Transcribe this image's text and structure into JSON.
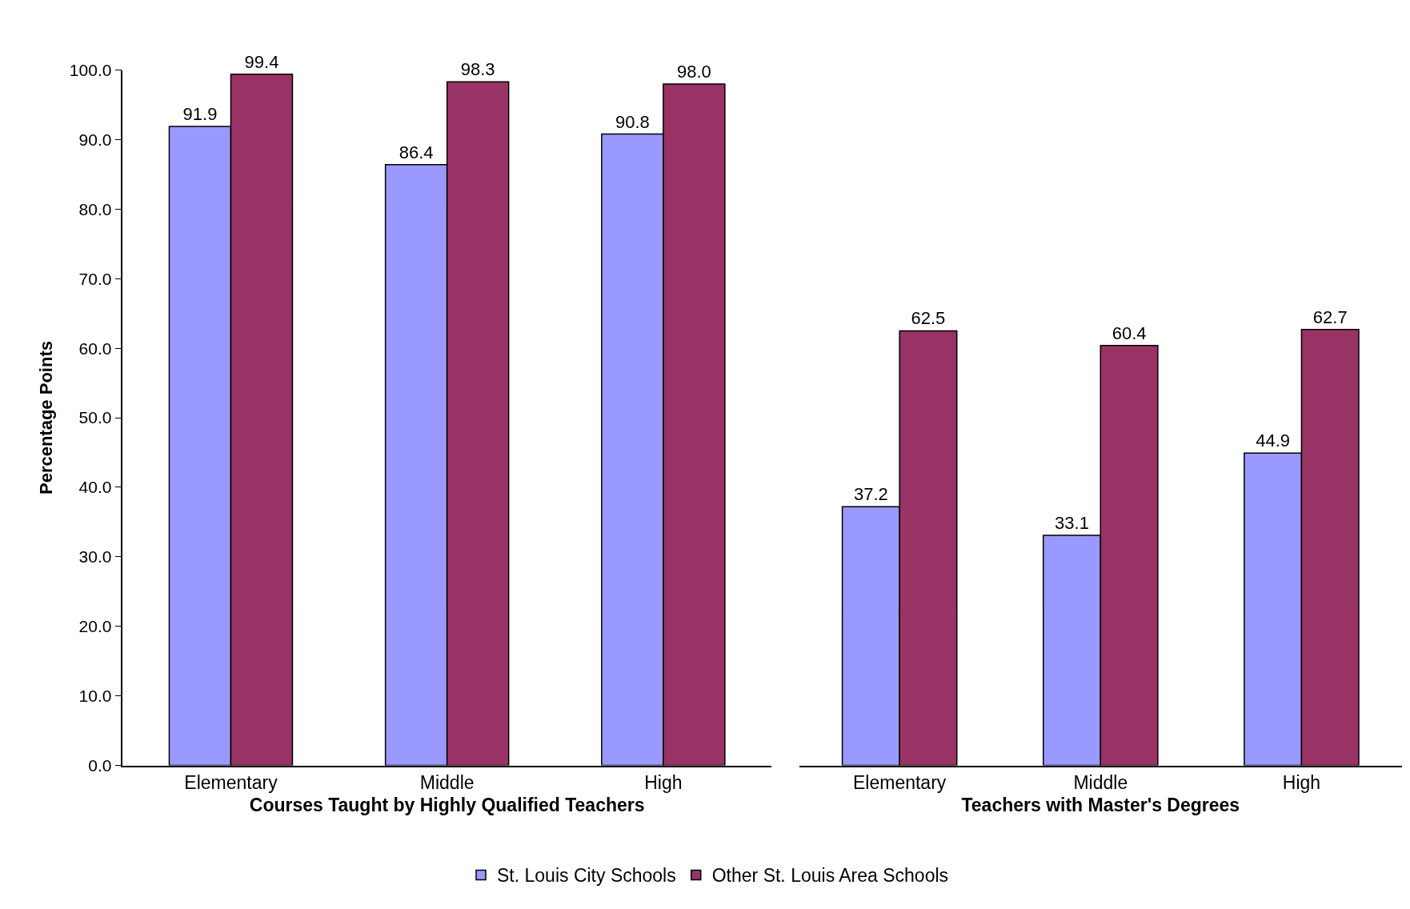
{
  "chart_data": [
    {
      "type": "bar",
      "xlabel": "Courses Taught by Highly Qualified Teachers",
      "ylabel": "Percentage Points",
      "categories": [
        "Elementary",
        "Middle",
        "High"
      ],
      "series": [
        {
          "name": "St. Louis City Schools",
          "color": "#9999ff",
          "values": [
            91.9,
            86.4,
            90.8
          ],
          "value_labels": [
            "91.9",
            "86.4",
            "90.8"
          ]
        },
        {
          "name": "Other St. Louis Area Schools",
          "color": "#993366",
          "values": [
            99.4,
            98.3,
            98.0
          ],
          "value_labels": [
            "99.4",
            "98.3",
            "98.0"
          ]
        }
      ],
      "ylim": [
        0,
        100
      ],
      "yticks": [
        {
          "value": 0,
          "label": "0.0"
        },
        {
          "value": 10,
          "label": "10.0"
        },
        {
          "value": 20,
          "label": "20.0"
        },
        {
          "value": 30,
          "label": "30.0"
        },
        {
          "value": 40,
          "label": "40.0"
        },
        {
          "value": 50,
          "label": "50.0"
        },
        {
          "value": 60,
          "label": "60.0"
        },
        {
          "value": 70,
          "label": "70.0"
        },
        {
          "value": 80,
          "label": "80.0"
        },
        {
          "value": 90,
          "label": "90.0"
        },
        {
          "value": 100,
          "label": "100.0"
        }
      ],
      "legend": "bottom"
    },
    {
      "type": "bar",
      "xlabel": "Teachers with Master's Degrees",
      "categories": [
        "Elementary",
        "Middle",
        "High"
      ],
      "series": [
        {
          "color": "#9999ff",
          "values": [
            37.2,
            33.1,
            44.9
          ],
          "value_labels": [
            "37.2",
            "33.1",
            "44.9"
          ]
        },
        {
          "color": "#993366",
          "values": [
            62.5,
            60.4,
            62.7
          ],
          "value_labels": [
            "62.5",
            "60.4",
            "62.7"
          ]
        }
      ],
      "ylim": [
        0,
        100
      ],
      "tick_labels": "x"
    }
  ]
}
